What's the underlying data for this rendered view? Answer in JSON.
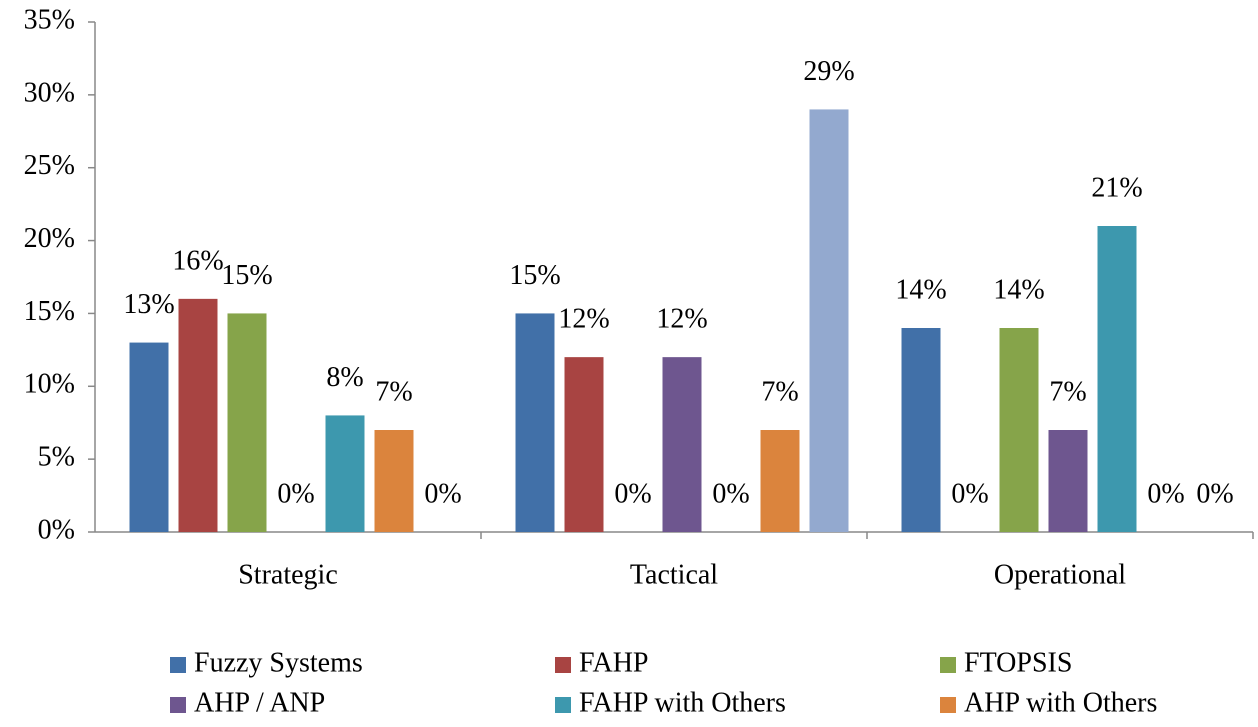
{
  "chart_data": {
    "type": "bar",
    "categories": [
      "Strategic",
      "Tactical",
      "Operational"
    ],
    "series": [
      {
        "name": "Fuzzy Systems",
        "color": "#4170a8",
        "values": [
          13,
          15,
          14
        ],
        "value_labels": [
          "13%",
          "15%",
          "14%"
        ]
      },
      {
        "name": "FAHP",
        "color": "#a84442",
        "values": [
          16,
          12,
          0
        ],
        "value_labels": [
          "16%",
          "12%",
          "0%"
        ]
      },
      {
        "name": "FTOPSIS",
        "color": "#86a44a",
        "values": [
          15,
          0,
          14
        ],
        "value_labels": [
          "15%",
          "0%",
          "14%"
        ]
      },
      {
        "name": "AHP / ANP",
        "color": "#6e568f",
        "values": [
          0,
          12,
          7
        ],
        "value_labels": [
          "0%",
          "12%",
          "7%"
        ]
      },
      {
        "name": "FAHP with Others",
        "color": "#3d98ae",
        "values": [
          8,
          0,
          21
        ],
        "value_labels": [
          "8%",
          "0%",
          "21%"
        ]
      },
      {
        "name": "AHP with Others",
        "color": "#db843d",
        "values": [
          7,
          7,
          0
        ],
        "value_labels": [
          "7%",
          "7%",
          "0%"
        ]
      },
      {
        "color": "#93a9cf",
        "values": [
          0,
          29,
          0
        ],
        "value_labels": [
          "0%",
          "29%",
          "0%"
        ]
      }
    ],
    "ylim": [
      0,
      35
    ],
    "yticks": [
      {
        "value": 0,
        "label": "0%"
      },
      {
        "value": 5,
        "label": "5%"
      },
      {
        "value": 10,
        "label": "10%"
      },
      {
        "value": 15,
        "label": "15%"
      },
      {
        "value": 20,
        "label": "20%"
      },
      {
        "value": 25,
        "label": "25%"
      },
      {
        "value": 30,
        "label": "30%"
      },
      {
        "value": 35,
        "label": "35%"
      }
    ],
    "grid": false
  }
}
